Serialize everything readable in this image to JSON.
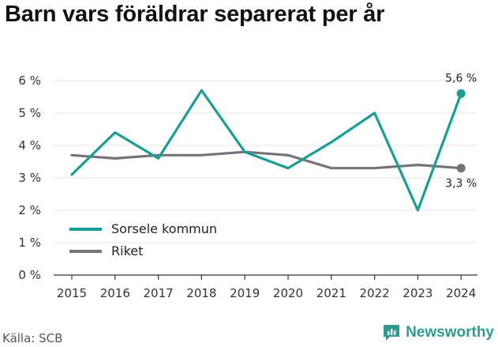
{
  "header": {
    "title": "Barn vars föräldrar separerat per år"
  },
  "footer": {
    "source": "Källa: SCB",
    "brand": "Newsworthy"
  },
  "colors": {
    "series1": "#1a9e93",
    "series2": "#767279",
    "axis": "#333333",
    "grid": "#e6e6e6"
  },
  "chart_data": {
    "type": "line",
    "title": "Barn vars föräldrar separerat per år",
    "x": [
      "2015",
      "2016",
      "2017",
      "2018",
      "2019",
      "2020",
      "2021",
      "2022",
      "2023",
      "2024"
    ],
    "ylim": [
      0,
      6
    ],
    "yticks": [
      "0 %",
      "1 %",
      "2 %",
      "3 %",
      "4 %",
      "5 %",
      "6 %"
    ],
    "legend": "bottom-left",
    "series": [
      {
        "name": "Sorsele kommun",
        "values": [
          3.1,
          4.4,
          3.6,
          5.7,
          3.8,
          3.3,
          4.1,
          5.0,
          2.0,
          5.6
        ],
        "end_label": "5,6 %"
      },
      {
        "name": "Riket",
        "values": [
          3.7,
          3.6,
          3.7,
          3.7,
          3.8,
          3.7,
          3.3,
          3.3,
          3.4,
          3.3
        ],
        "end_label": "3,3 %"
      }
    ]
  }
}
